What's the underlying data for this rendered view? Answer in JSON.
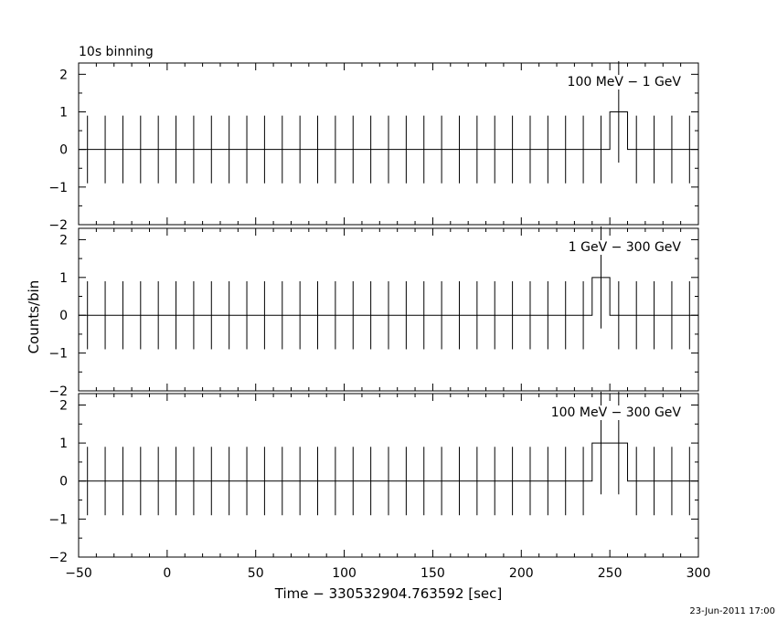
{
  "header_title": "10s binning",
  "footer_timestamp": "23-Jun-2011 17:00",
  "chart_data": {
    "type": "step",
    "xlabel": "Time − 330532904.763592 [sec]",
    "ylabel": "Counts/bin",
    "xlim": [
      -50,
      300
    ],
    "x_ticks": [
      -50,
      0,
      50,
      100,
      150,
      200,
      250,
      300
    ],
    "x_tick_labels": [
      "−50",
      "0",
      "50",
      "100",
      "150",
      "200",
      "250",
      "300"
    ],
    "bin_width": 10,
    "first_bin_center": -45,
    "panels": [
      {
        "label": "100 MeV − 1 GeV",
        "ylim": [
          -2,
          2.3
        ],
        "y_ticks": [
          -2,
          -1,
          0,
          1,
          2
        ],
        "y_tick_labels": [
          "−2",
          "−1",
          "0",
          "1",
          "2"
        ],
        "values": [
          0,
          0,
          0,
          0,
          0,
          0,
          0,
          0,
          0,
          0,
          0,
          0,
          0,
          0,
          0,
          0,
          0,
          0,
          0,
          0,
          0,
          0,
          0,
          0,
          0,
          0,
          0,
          0,
          0,
          0,
          1,
          0,
          0,
          0,
          0
        ],
        "errors": [
          0.9,
          0.9,
          0.9,
          0.9,
          0.9,
          0.9,
          0.9,
          0.9,
          0.9,
          0.9,
          0.9,
          0.9,
          0.9,
          0.9,
          0.9,
          0.9,
          0.9,
          0.9,
          0.9,
          0.9,
          0.9,
          0.9,
          0.9,
          0.9,
          0.9,
          0.9,
          0.9,
          0.9,
          0.9,
          0.9,
          1.35,
          0.9,
          0.9,
          0.9,
          0.9
        ]
      },
      {
        "label": "1 GeV − 300 GeV",
        "ylim": [
          -2,
          2.3
        ],
        "y_ticks": [
          -2,
          -1,
          0,
          1,
          2
        ],
        "y_tick_labels": [
          "−2",
          "−1",
          "0",
          "1",
          "2"
        ],
        "values": [
          0,
          0,
          0,
          0,
          0,
          0,
          0,
          0,
          0,
          0,
          0,
          0,
          0,
          0,
          0,
          0,
          0,
          0,
          0,
          0,
          0,
          0,
          0,
          0,
          0,
          0,
          0,
          0,
          0,
          1,
          0,
          0,
          0,
          0,
          0
        ],
        "errors": [
          0.9,
          0.9,
          0.9,
          0.9,
          0.9,
          0.9,
          0.9,
          0.9,
          0.9,
          0.9,
          0.9,
          0.9,
          0.9,
          0.9,
          0.9,
          0.9,
          0.9,
          0.9,
          0.9,
          0.9,
          0.9,
          0.9,
          0.9,
          0.9,
          0.9,
          0.9,
          0.9,
          0.9,
          0.9,
          1.35,
          0.9,
          0.9,
          0.9,
          0.9,
          0.9
        ]
      },
      {
        "label": "100 MeV − 300 GeV",
        "ylim": [
          -2,
          2.3
        ],
        "y_ticks": [
          -2,
          -1,
          0,
          1,
          2
        ],
        "y_tick_labels": [
          "−2",
          "−1",
          "0",
          "1",
          "2"
        ],
        "values": [
          0,
          0,
          0,
          0,
          0,
          0,
          0,
          0,
          0,
          0,
          0,
          0,
          0,
          0,
          0,
          0,
          0,
          0,
          0,
          0,
          0,
          0,
          0,
          0,
          0,
          0,
          0,
          0,
          0,
          1,
          1,
          0,
          0,
          0,
          0
        ],
        "errors": [
          0.9,
          0.9,
          0.9,
          0.9,
          0.9,
          0.9,
          0.9,
          0.9,
          0.9,
          0.9,
          0.9,
          0.9,
          0.9,
          0.9,
          0.9,
          0.9,
          0.9,
          0.9,
          0.9,
          0.9,
          0.9,
          0.9,
          0.9,
          0.9,
          0.9,
          0.9,
          0.9,
          0.9,
          0.9,
          1.35,
          1.35,
          0.9,
          0.9,
          0.9,
          0.9
        ]
      }
    ]
  }
}
